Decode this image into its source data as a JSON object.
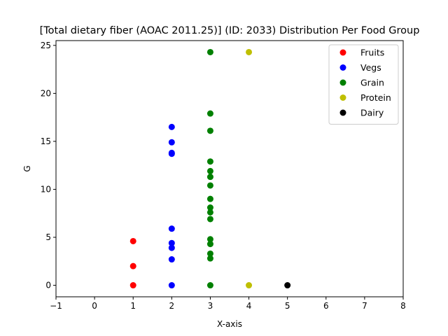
{
  "chart_data": {
    "type": "scatter",
    "title": "[Total dietary fiber (AOAC 2011.25)] (ID: 2033) Distribution Per Food Group",
    "xlabel": "X-axis",
    "ylabel": "G",
    "xlim": [
      -1,
      8
    ],
    "ylim": [
      -1.2,
      25.5
    ],
    "x_ticks": [
      -1,
      0,
      1,
      2,
      3,
      4,
      5,
      6,
      7,
      8
    ],
    "y_ticks": [
      0,
      5,
      10,
      15,
      20,
      25
    ],
    "grid": false,
    "legend_position": "top-right",
    "series": [
      {
        "name": "Fruits",
        "color": "#ff0000",
        "points": [
          [
            1,
            0
          ],
          [
            1,
            2.0
          ],
          [
            1,
            4.6
          ]
        ]
      },
      {
        "name": "Vegs",
        "color": "#0000ff",
        "points": [
          [
            2,
            0
          ],
          [
            2,
            2.7
          ],
          [
            2,
            3.9
          ],
          [
            2,
            4.4
          ],
          [
            2,
            5.9
          ],
          [
            2,
            13.7
          ],
          [
            2,
            13.8
          ],
          [
            2,
            14.9
          ],
          [
            2,
            16.5
          ]
        ]
      },
      {
        "name": "Grain",
        "color": "#008000",
        "points": [
          [
            3,
            0
          ],
          [
            3,
            2.8
          ],
          [
            3,
            3.3
          ],
          [
            3,
            4.3
          ],
          [
            3,
            4.8
          ],
          [
            3,
            6.9
          ],
          [
            3,
            7.6
          ],
          [
            3,
            8.1
          ],
          [
            3,
            9.0
          ],
          [
            3,
            10.4
          ],
          [
            3,
            11.3
          ],
          [
            3,
            11.9
          ],
          [
            3,
            12.9
          ],
          [
            3,
            16.1
          ],
          [
            3,
            17.9
          ],
          [
            3,
            24.3
          ]
        ]
      },
      {
        "name": "Protein",
        "color": "#bfbf00",
        "points": [
          [
            4,
            0
          ],
          [
            4,
            24.3
          ]
        ]
      },
      {
        "name": "Dairy",
        "color": "#000000",
        "points": [
          [
            5,
            0
          ]
        ]
      }
    ]
  }
}
